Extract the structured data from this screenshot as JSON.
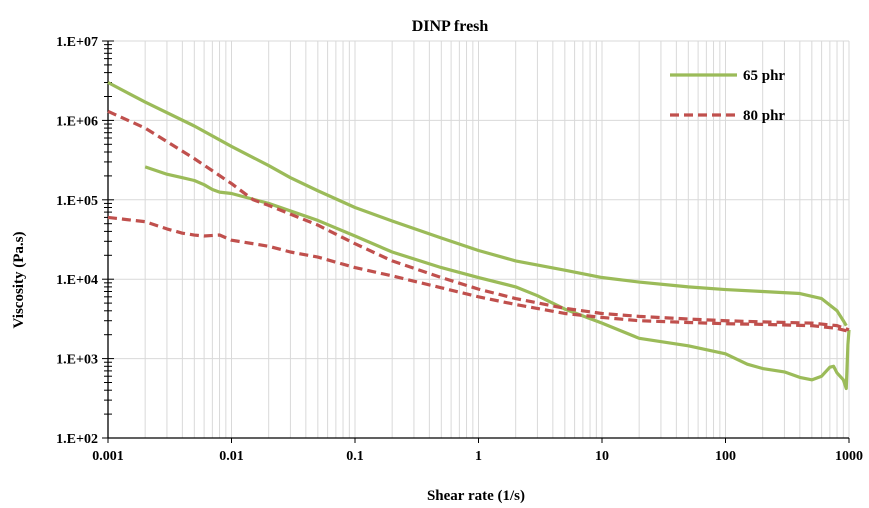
{
  "chart_data": {
    "type": "line",
    "title": "DINP fresh",
    "xlabel": "Shear rate (1/s)",
    "ylabel": "Viscosity (Pa.s)",
    "x_scale": "log",
    "y_scale": "log",
    "xlim": [
      0.001,
      1000
    ],
    "ylim": [
      100,
      10000000
    ],
    "x_ticks": [
      0.001,
      0.01,
      0.1,
      1,
      10,
      100,
      1000
    ],
    "x_tick_labels": [
      "0.001",
      "0.01",
      "0.1",
      "1",
      "10",
      "100",
      "1000"
    ],
    "y_ticks": [
      100,
      1000,
      10000,
      100000,
      1000000,
      10000000
    ],
    "y_tick_labels": [
      "1.E+02",
      "1.E+03",
      "1.E+04",
      "1.E+05",
      "1.E+06",
      "1.E+07"
    ],
    "grid": true,
    "legend_position": "top-right",
    "series": [
      {
        "name": "65 phr",
        "color": "#9bbb59",
        "line_style": "solid",
        "curves": [
          [
            [
              0.001,
              3000000
            ],
            [
              0.002,
              1700000
            ],
            [
              0.005,
              850000
            ],
            [
              0.01,
              470000
            ],
            [
              0.02,
              270000
            ],
            [
              0.03,
              190000
            ],
            [
              0.05,
              130000
            ],
            [
              0.1,
              80000
            ],
            [
              0.2,
              54000
            ],
            [
              0.5,
              33000
            ],
            [
              1,
              23000
            ],
            [
              2,
              17000
            ],
            [
              5,
              13000
            ],
            [
              10,
              10500
            ],
            [
              20,
              9200
            ],
            [
              50,
              8000
            ],
            [
              100,
              7400
            ],
            [
              200,
              7000
            ],
            [
              400,
              6600
            ],
            [
              600,
              5700
            ],
            [
              800,
              4000
            ],
            [
              900,
              3000
            ],
            [
              950,
              2600
            ]
          ],
          [
            [
              0.002,
              260000
            ],
            [
              0.003,
              210000
            ],
            [
              0.004,
              190000
            ],
            [
              0.005,
              175000
            ],
            [
              0.006,
              155000
            ],
            [
              0.007,
              135000
            ],
            [
              0.008,
              125000
            ],
            [
              0.01,
              120000
            ],
            [
              0.02,
              90000
            ],
            [
              0.05,
              55000
            ],
            [
              0.1,
              35000
            ],
            [
              0.2,
              22000
            ],
            [
              0.5,
              14000
            ],
            [
              1,
              10500
            ],
            [
              2,
              8000
            ],
            [
              3,
              6200
            ],
            [
              5,
              4200
            ],
            [
              10,
              2800
            ],
            [
              20,
              1800
            ],
            [
              50,
              1450
            ],
            [
              100,
              1150
            ],
            [
              150,
              850
            ],
            [
              200,
              750
            ],
            [
              300,
              680
            ],
            [
              400,
              580
            ],
            [
              500,
              540
            ],
            [
              600,
              600
            ],
            [
              700,
              780
            ],
            [
              750,
              800
            ],
            [
              800,
              660
            ],
            [
              900,
              540
            ],
            [
              950,
              420
            ],
            [
              980,
              1500
            ],
            [
              1000,
              2300
            ]
          ]
        ]
      },
      {
        "name": "80 phr",
        "color": "#c0504d",
        "line_style": "dashed",
        "curves": [
          [
            [
              0.001,
              1300000
            ],
            [
              0.002,
              800000
            ],
            [
              0.005,
              330000
            ],
            [
              0.01,
              160000
            ],
            [
              0.015,
              100000
            ],
            [
              0.02,
              85000
            ],
            [
              0.05,
              48000
            ],
            [
              0.1,
              28000
            ],
            [
              0.2,
              17000
            ],
            [
              0.5,
              10500
            ],
            [
              1,
              7500
            ],
            [
              2,
              5700
            ],
            [
              5,
              4300
            ],
            [
              10,
              3700
            ],
            [
              20,
              3400
            ],
            [
              50,
              3150
            ],
            [
              100,
              3000
            ],
            [
              200,
              2900
            ],
            [
              500,
              2800
            ],
            [
              800,
              2600
            ],
            [
              1000,
              2300
            ]
          ],
          [
            [
              0.001,
              60000
            ],
            [
              0.002,
              53000
            ],
            [
              0.003,
              43000
            ],
            [
              0.004,
              38000
            ],
            [
              0.005,
              36000
            ],
            [
              0.006,
              35000
            ],
            [
              0.008,
              36000
            ],
            [
              0.01,
              31000
            ],
            [
              0.02,
              26000
            ],
            [
              0.03,
              22000
            ],
            [
              0.05,
              19000
            ],
            [
              0.1,
              14000
            ],
            [
              0.2,
              11000
            ],
            [
              0.5,
              7800
            ],
            [
              1,
              6000
            ],
            [
              2,
              4800
            ],
            [
              5,
              3700
            ],
            [
              10,
              3300
            ],
            [
              20,
              3000
            ],
            [
              50,
              2850
            ],
            [
              100,
              2750
            ],
            [
              200,
              2700
            ],
            [
              500,
              2600
            ],
            [
              800,
              2400
            ],
            [
              1000,
              2200
            ]
          ]
        ]
      }
    ]
  }
}
